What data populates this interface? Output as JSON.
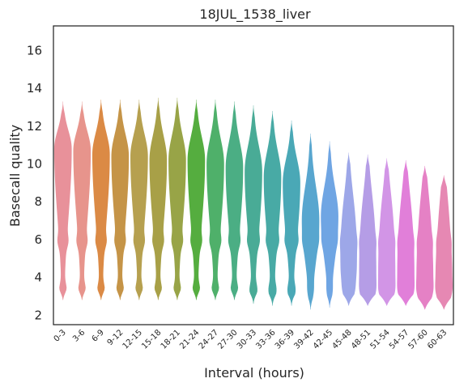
{
  "chart_data": {
    "type": "violin",
    "title": "18JUL_1538_liver",
    "xlabel": "Interval (hours)",
    "ylabel": "Basecall quality",
    "ylim": [
      1.5,
      17.3
    ],
    "yticks": [
      2,
      4,
      6,
      8,
      10,
      12,
      14,
      16
    ],
    "grid": false,
    "legend": "none",
    "categories": [
      "0-3",
      "3-6",
      "6-9",
      "9-12",
      "12-15",
      "15-18",
      "18-21",
      "21-24",
      "24-27",
      "27-30",
      "30-33",
      "33-36",
      "36-39",
      "39-42",
      "42-45",
      "45-48",
      "48-51",
      "51-54",
      "54-57",
      "57-60",
      "60-63"
    ],
    "colors": [
      "#e8919a",
      "#e7948c",
      "#db8a45",
      "#c59447",
      "#b6a04f",
      "#a8a047",
      "#98a447",
      "#55ad3f",
      "#4fb06a",
      "#4bae84",
      "#49ab96",
      "#48aaa5",
      "#4aa8b6",
      "#58a6cf",
      "#6fa5e3",
      "#9da7e8",
      "#b59de6",
      "#d295e6",
      "#e17fd9",
      "#e581c5",
      "#e688b3"
    ],
    "series": [
      {
        "range": [
          2.8,
          13.3
        ],
        "peak": 10.8
      },
      {
        "range": [
          2.8,
          13.3
        ],
        "peak": 10.7
      },
      {
        "range": [
          2.8,
          13.4
        ],
        "peak": 10.5
      },
      {
        "range": [
          2.8,
          13.4
        ],
        "peak": 10.4
      },
      {
        "range": [
          2.8,
          13.4
        ],
        "peak": 10.4
      },
      {
        "range": [
          2.8,
          13.5
        ],
        "peak": 10.2
      },
      {
        "range": [
          2.8,
          13.5
        ],
        "peak": 10.2
      },
      {
        "range": [
          2.8,
          13.4
        ],
        "peak": 10.2
      },
      {
        "range": [
          2.8,
          13.4
        ],
        "peak": 10.0
      },
      {
        "range": [
          2.8,
          13.3
        ],
        "peak": 9.8
      },
      {
        "range": [
          2.6,
          13.1
        ],
        "peak": 9.6
      },
      {
        "range": [
          2.5,
          12.8
        ],
        "peak": 9.3
      },
      {
        "range": [
          2.5,
          12.3
        ],
        "peak": 9.0
      },
      {
        "range": [
          2.3,
          11.6
        ],
        "peak": 7.0
      },
      {
        "range": [
          2.4,
          11.2
        ],
        "peak": 7.2
      },
      {
        "range": [
          2.5,
          10.6
        ],
        "peak": 4.5
      },
      {
        "range": [
          2.5,
          10.5
        ],
        "peak": 4.0
      },
      {
        "range": [
          2.5,
          10.3
        ],
        "peak": 4.0
      },
      {
        "range": [
          2.5,
          10.2
        ],
        "peak": 4.0
      },
      {
        "range": [
          2.3,
          9.9
        ],
        "peak": 3.9
      },
      {
        "range": [
          2.3,
          9.4
        ],
        "peak": 3.9
      }
    ]
  }
}
